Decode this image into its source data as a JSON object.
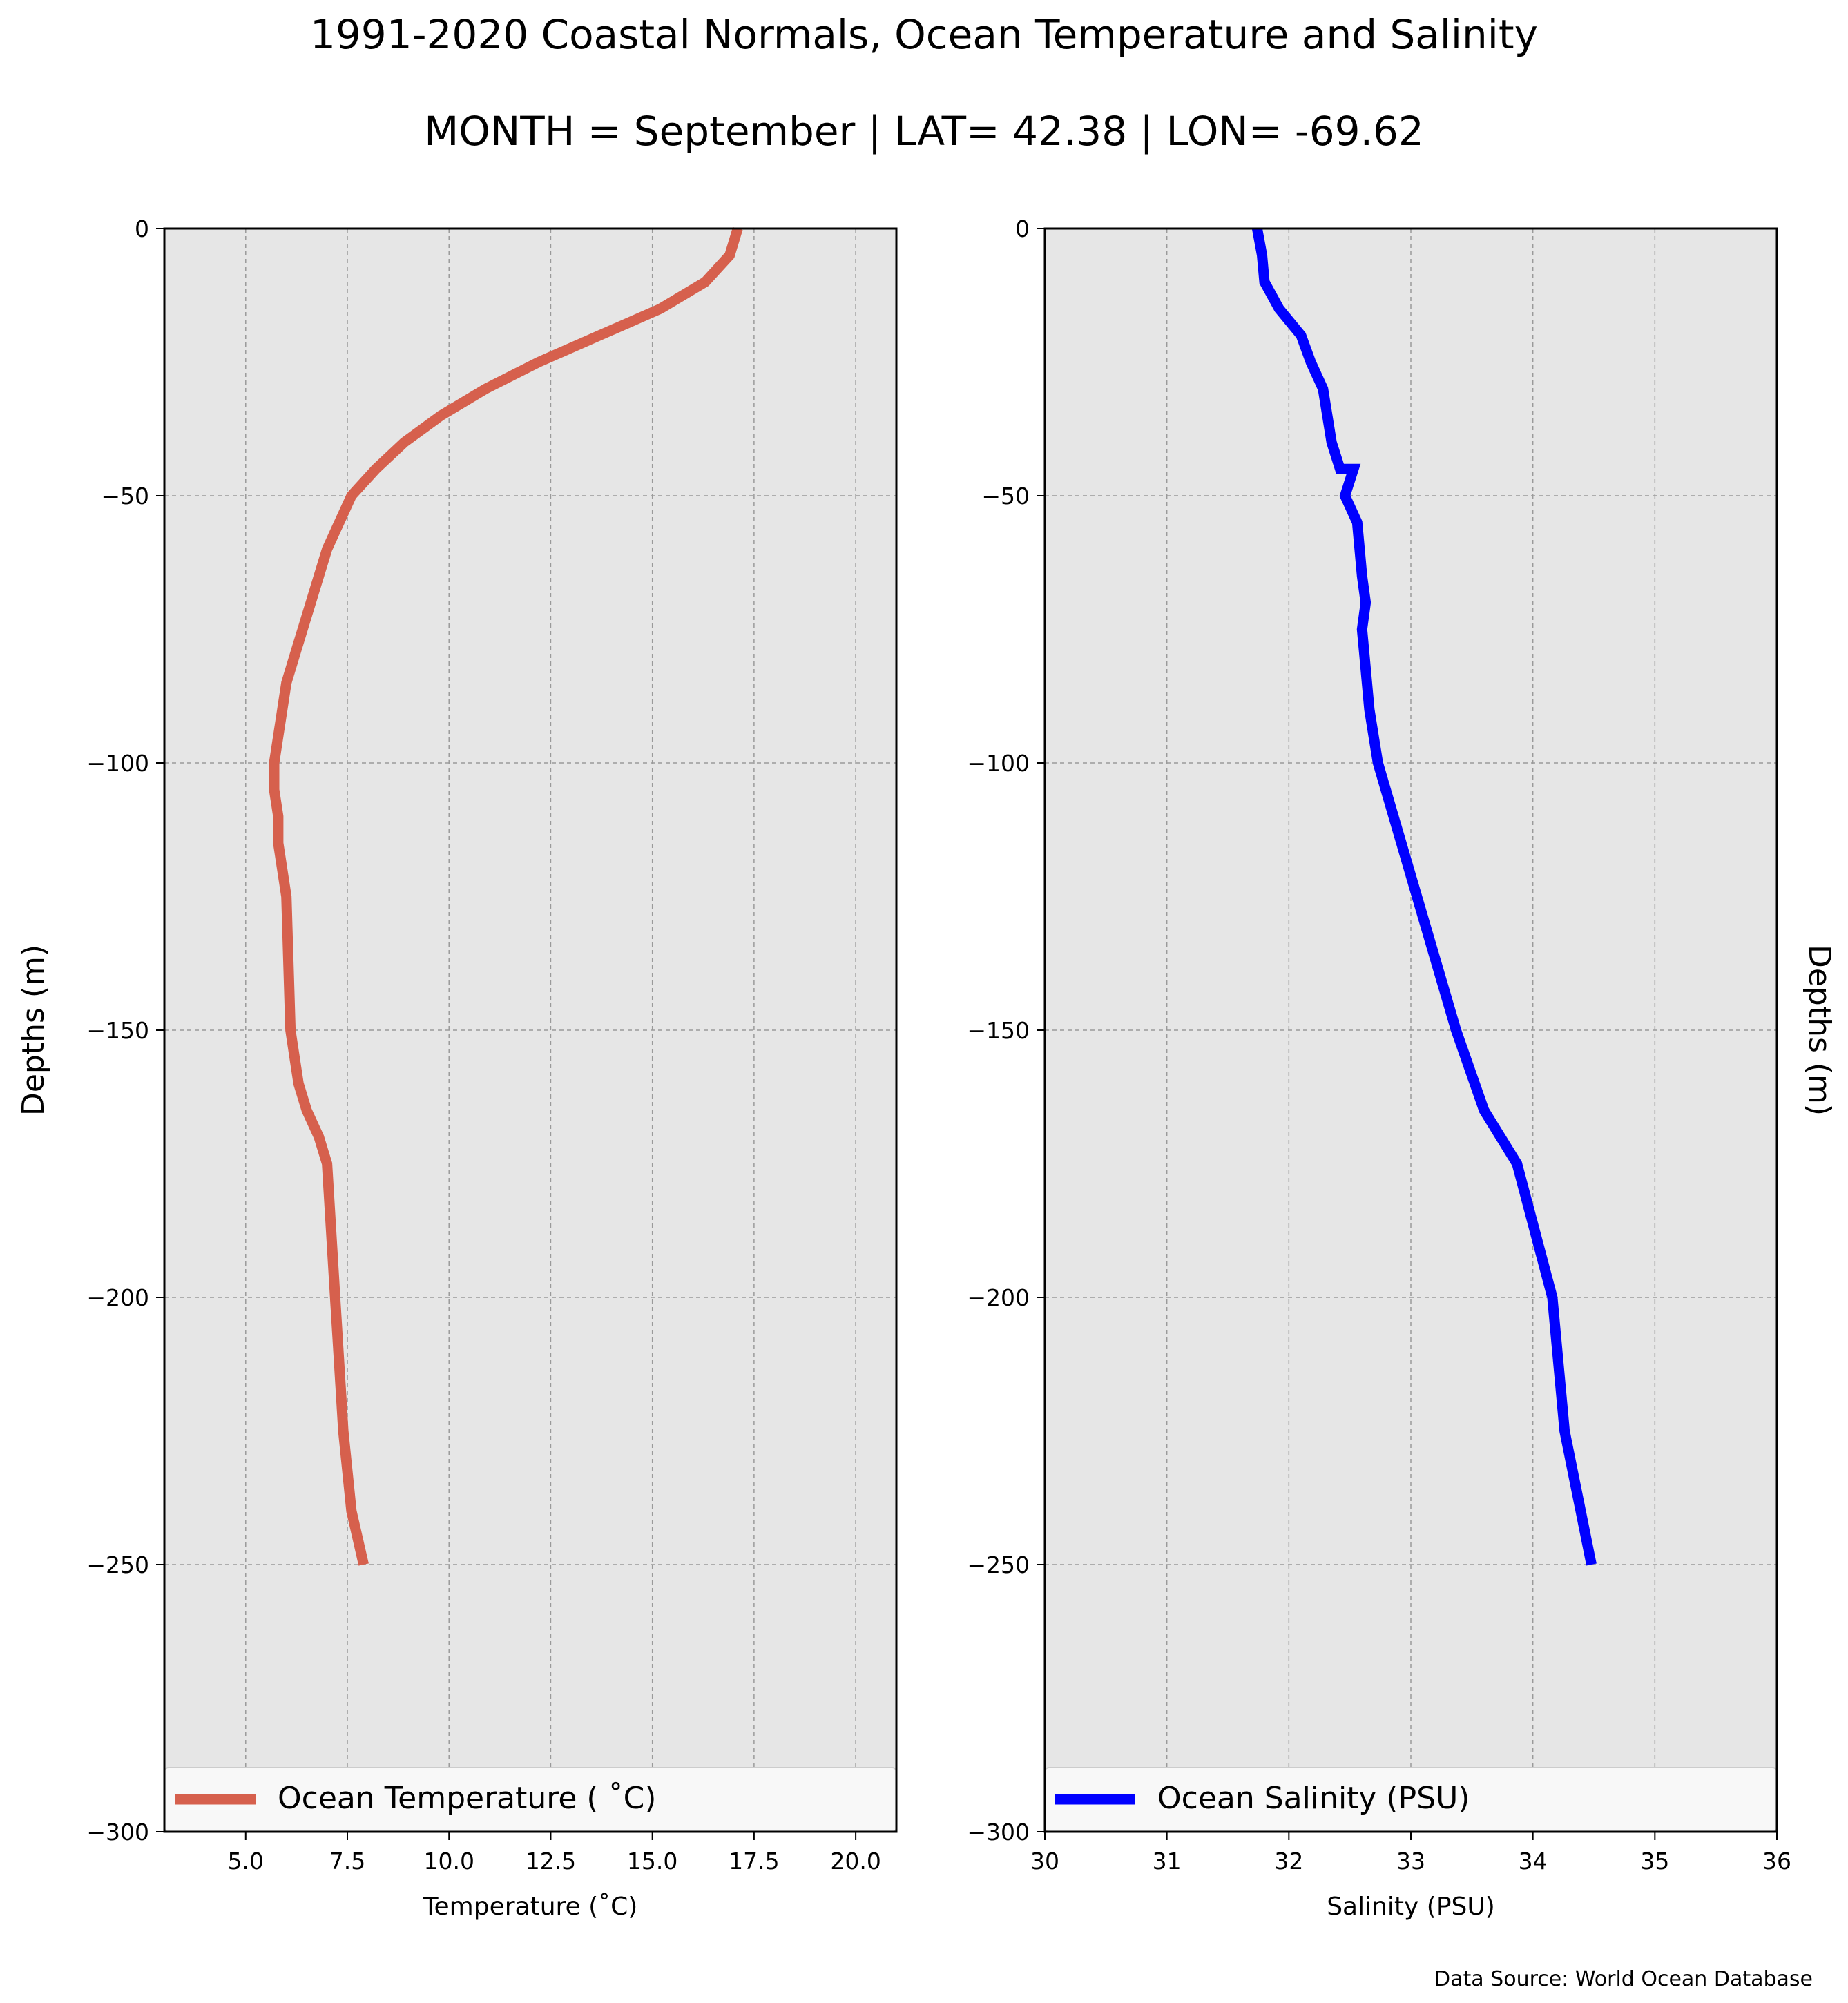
{
  "figure": {
    "title": "1991-2020 Coastal Normals, Ocean Temperature and Salinity",
    "subtitle": "MONTH = September | LAT= 42.38 | LON= -69.62",
    "source": "Data Source: World Ocean Database"
  },
  "colors": {
    "panel_bg": "#e6e6e6",
    "grid": "#9a9a9a",
    "temperature_line": "#d6604d",
    "salinity_line": "#0000ff",
    "legend_bg": "#f8f8f8"
  },
  "chart_data": [
    {
      "type": "line",
      "orientation": "profile (x = value, y = depth)",
      "xlabel": "Temperature ($^\\circ$C)",
      "xlabel_display": "Temperature (˚C)",
      "ylabel": "Depths (m)",
      "xlim": [
        3.0,
        21.0
      ],
      "ylim": [
        -300,
        0
      ],
      "xticks": [
        5.0,
        7.5,
        10.0,
        12.5,
        15.0,
        17.5,
        20.0
      ],
      "xtick_labels": [
        "5.0",
        "7.5",
        "10.0",
        "12.5",
        "15.0",
        "17.5",
        "20.0"
      ],
      "yticks": [
        0,
        -50,
        -100,
        -150,
        -200,
        -250,
        -300
      ],
      "ytick_labels": [
        "0",
        "−50",
        "−100",
        "−150",
        "−200",
        "−250",
        "−300"
      ],
      "grid": true,
      "legend_placement": "lower center",
      "series": [
        {
          "name": "Ocean Temperature ( ˚C)",
          "x": [
            17.1,
            16.9,
            16.3,
            15.2,
            13.7,
            12.2,
            10.9,
            9.8,
            8.9,
            8.2,
            7.6,
            7.3,
            7.0,
            6.8,
            6.6,
            6.4,
            6.2,
            6.0,
            5.9,
            5.8,
            5.7,
            5.7,
            5.8,
            5.8,
            5.9,
            6.0,
            6.1,
            6.3,
            6.5,
            6.8,
            7.0,
            7.2,
            7.4,
            7.6,
            7.9
          ],
          "y": [
            0,
            -5,
            -10,
            -15,
            -20,
            -25,
            -30,
            -35,
            -40,
            -45,
            -50,
            -55,
            -60,
            -65,
            -70,
            -75,
            -80,
            -85,
            -90,
            -95,
            -100,
            -105,
            -110,
            -115,
            -120,
            -125,
            -150,
            -160,
            -165,
            -170,
            -175,
            -200,
            -225,
            -240,
            -250
          ]
        }
      ]
    },
    {
      "type": "line",
      "orientation": "profile (x = value, y = depth)",
      "xlabel": "Salinity (PSU)",
      "ylabel": "Depths (m)",
      "xlim": [
        30,
        36
      ],
      "ylim": [
        -300,
        0
      ],
      "xticks": [
        30,
        31,
        32,
        33,
        34,
        35,
        36
      ],
      "xtick_labels": [
        "30",
        "31",
        "32",
        "33",
        "34",
        "35",
        "36"
      ],
      "yticks": [
        0,
        -50,
        -100,
        -150,
        -200,
        -250,
        -300
      ],
      "ytick_labels": [
        "0",
        "−50",
        "−100",
        "−150",
        "−200",
        "−250",
        "−300"
      ],
      "grid": true,
      "legend_placement": "lower center",
      "series": [
        {
          "name": "Ocean Salinity (PSU)",
          "x": [
            31.74,
            31.78,
            31.8,
            31.92,
            32.1,
            32.18,
            32.28,
            32.35,
            32.42,
            32.53,
            32.46,
            32.56,
            32.6,
            32.63,
            32.6,
            32.62,
            32.66,
            32.73,
            33.05,
            33.37,
            33.6,
            33.87,
            34.16,
            34.26,
            34.48
          ],
          "y": [
            0,
            -5,
            -10,
            -15,
            -20,
            -25,
            -30,
            -40,
            -45,
            -45,
            -50,
            -55,
            -65,
            -70,
            -75,
            -80,
            -90,
            -100,
            -125,
            -150,
            -165,
            -175,
            -200,
            -225,
            -250
          ]
        }
      ]
    }
  ]
}
